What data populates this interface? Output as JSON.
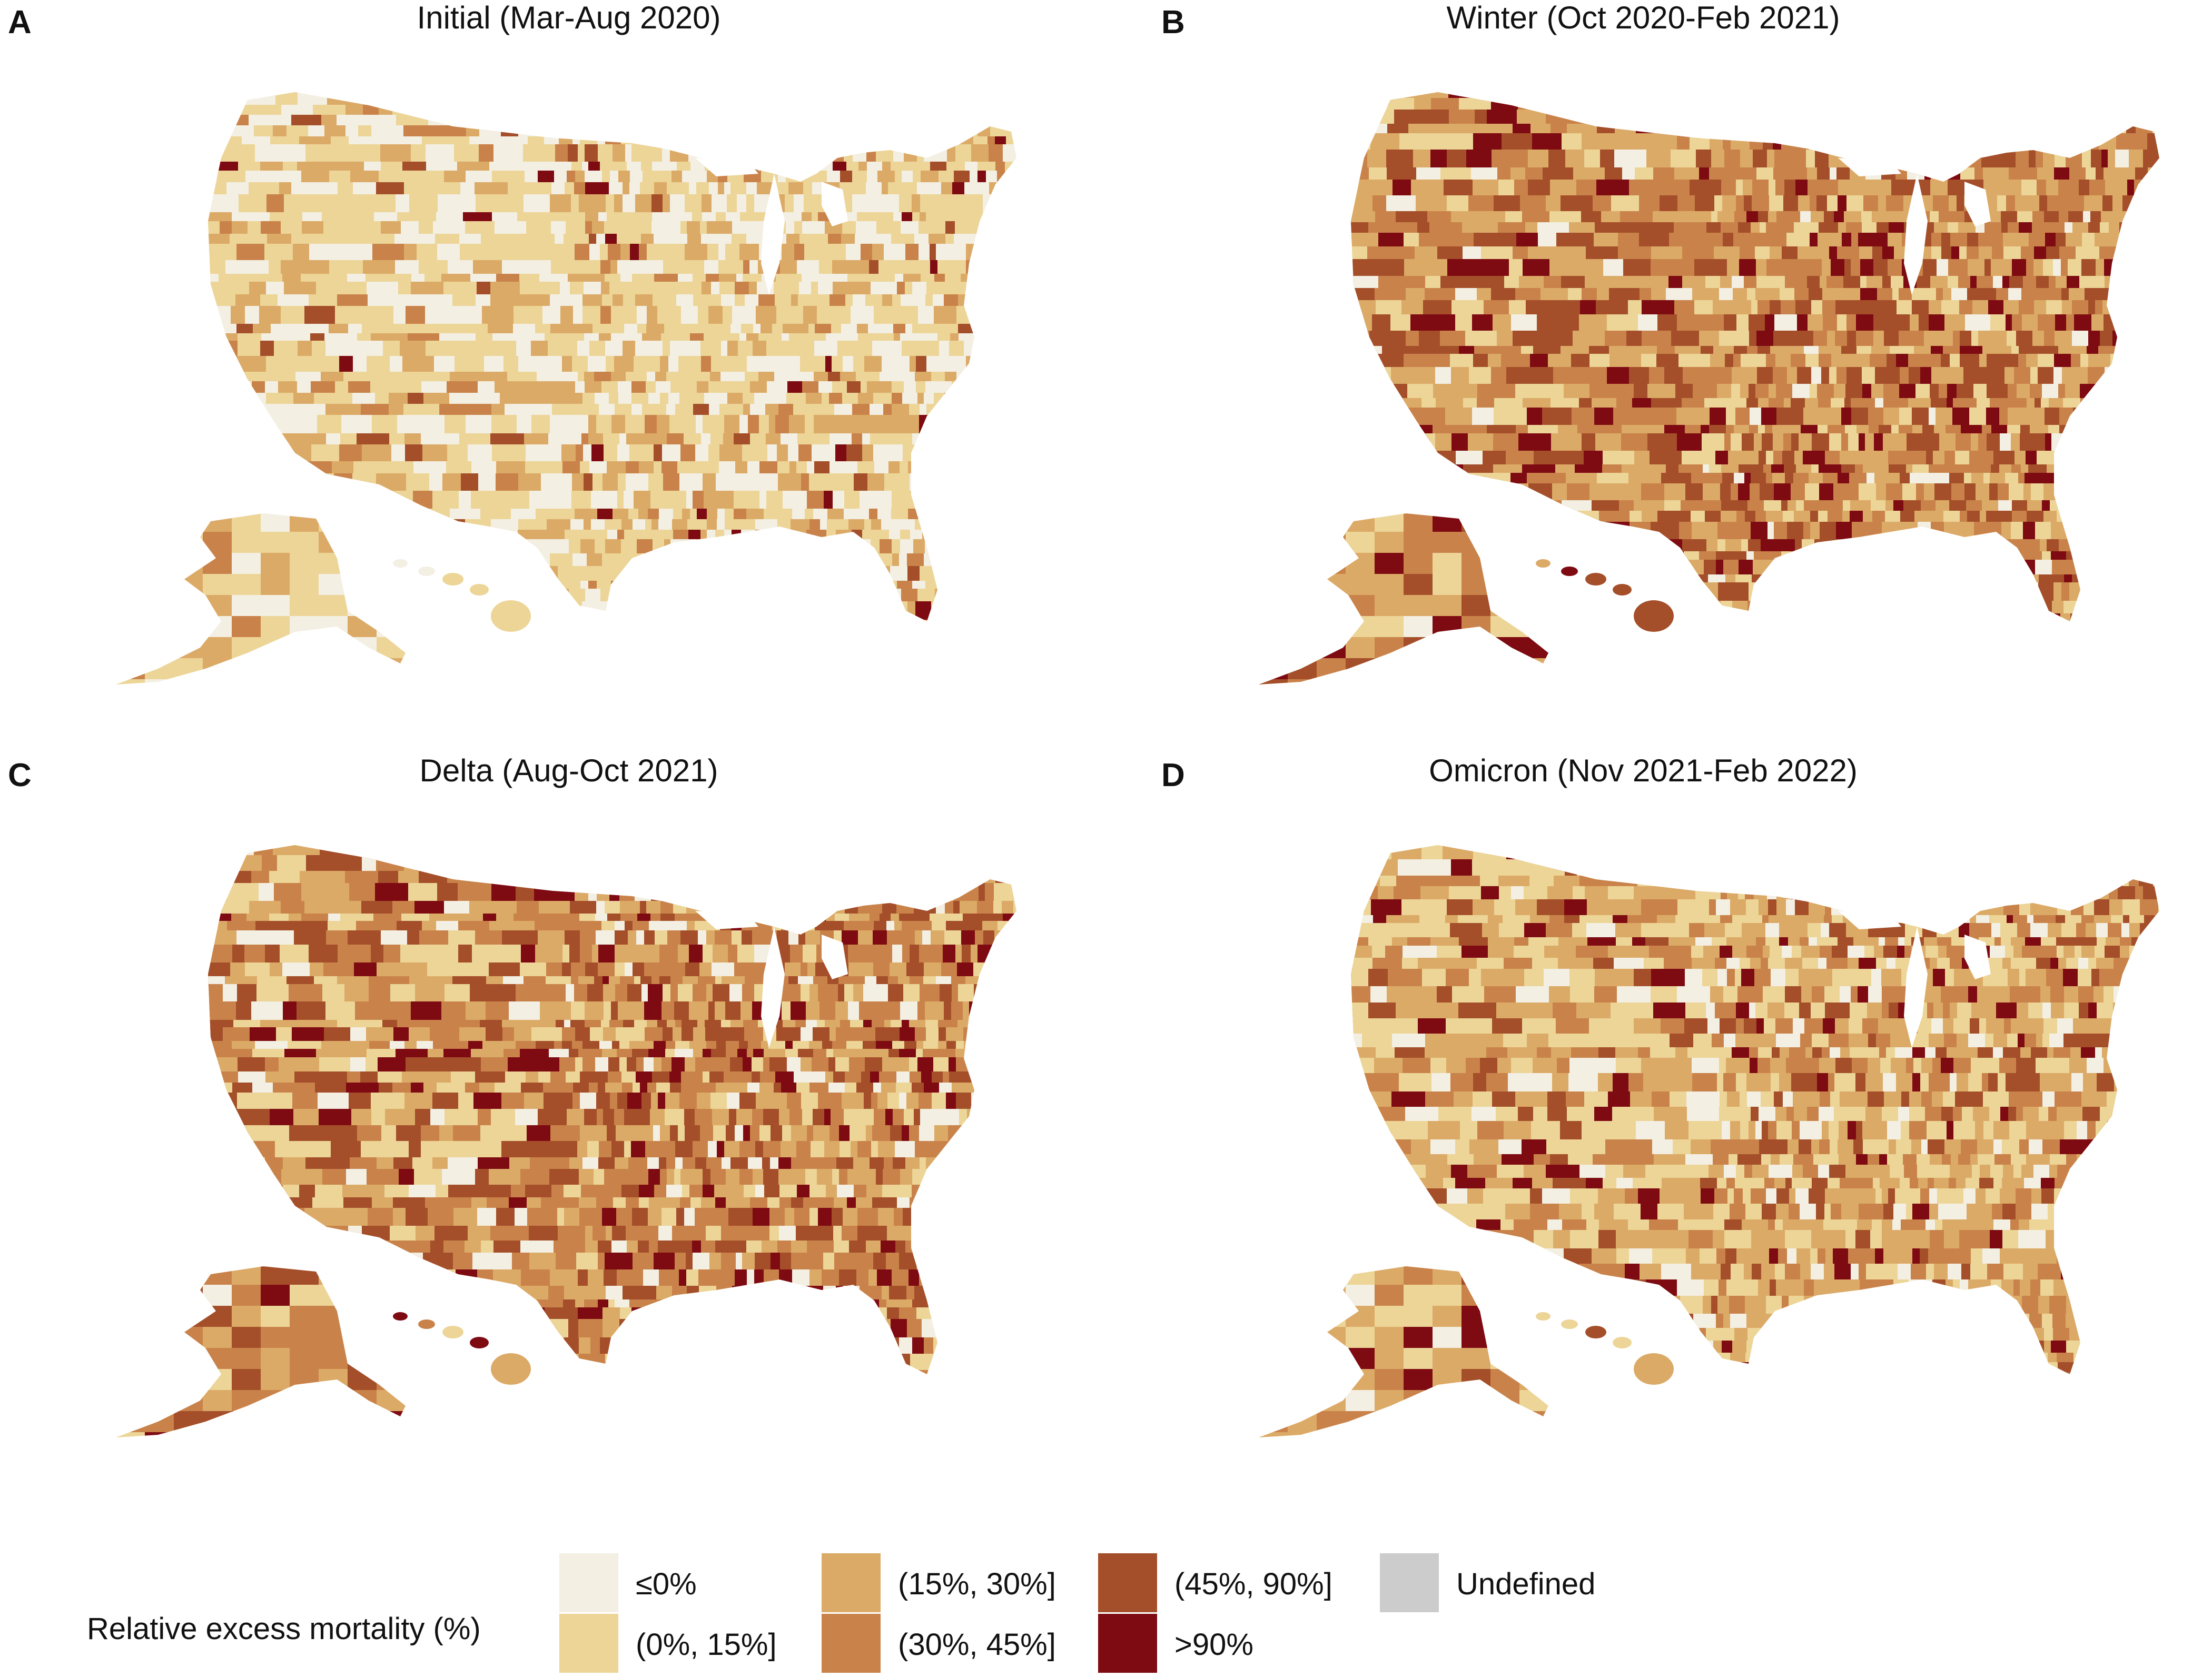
{
  "colors": {
    "le0": "#f3efe3",
    "b0_15": "#ecd597",
    "b15_30": "#dcaa67",
    "b30_45": "#c9834a",
    "b45_90": "#a44f2a",
    "gt90": "#7e0a12",
    "undefined": "#cccccc"
  },
  "panels": [
    {
      "letter": "A",
      "title": "Initial (Mar-Aug 2020)",
      "fill_weights": [
        30,
        40,
        18,
        7,
        3,
        2
      ]
    },
    {
      "letter": "B",
      "title": "Winter (Oct 2020-Feb 2021)",
      "fill_weights": [
        5,
        14,
        24,
        27,
        20,
        10
      ]
    },
    {
      "letter": "C",
      "title": "Delta (Aug-Oct 2021)",
      "fill_weights": [
        8,
        14,
        22,
        28,
        20,
        8
      ]
    },
    {
      "letter": "D",
      "title": "Omicron (Nov 2021-Feb 2022)",
      "fill_weights": [
        10,
        28,
        30,
        18,
        9,
        5
      ]
    }
  ],
  "legend": {
    "title": "Relative excess mortality (%)",
    "items": [
      {
        "label": "≤0%",
        "color_key": "le0"
      },
      {
        "label": "(0%, 15%]",
        "color_key": "b0_15"
      },
      {
        "label": "(15%, 30%]",
        "color_key": "b15_30"
      },
      {
        "label": "(30%, 45%]",
        "color_key": "b30_45"
      },
      {
        "label": "(45%, 90%]",
        "color_key": "b45_90"
      },
      {
        "label": ">90%",
        "color_key": "gt90"
      },
      {
        "label": "Undefined",
        "color_key": "undefined"
      }
    ]
  }
}
